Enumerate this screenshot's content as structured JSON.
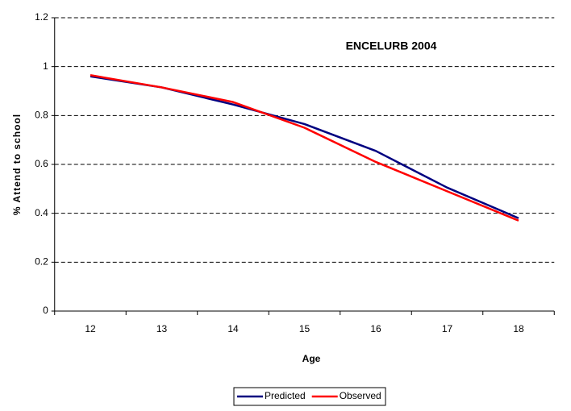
{
  "chart_data": {
    "type": "line",
    "title": "ENCELURB 2004",
    "x_label": "Age",
    "y_label": "% Attend to school",
    "categories": [
      "12",
      "13",
      "14",
      "15",
      "16",
      "17",
      "18"
    ],
    "series": [
      {
        "name": "Predicted",
        "color": "#000080",
        "values": [
          0.96,
          0.915,
          0.845,
          0.765,
          0.655,
          0.505,
          0.38
        ]
      },
      {
        "name": "Observed",
        "color": "#ff0000",
        "values": [
          0.965,
          0.915,
          0.855,
          0.75,
          0.61,
          0.49,
          0.37
        ]
      }
    ],
    "ylim": [
      0,
      1.2
    ],
    "yticks": [
      0,
      0.2,
      0.4,
      0.6,
      0.8,
      1,
      1.2
    ],
    "grid": true,
    "legend": "bottom"
  }
}
